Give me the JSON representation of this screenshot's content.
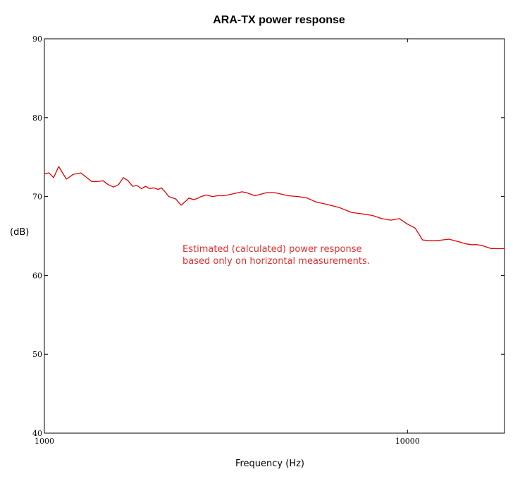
{
  "chart_data": {
    "type": "line",
    "title": "ARA-TX power response",
    "xlabel": "Frequency (Hz)",
    "ylabel": "(dB)",
    "x_scale": "log",
    "xlim": [
      1000,
      18500
    ],
    "ylim": [
      40,
      90
    ],
    "x_ticks": [
      1000,
      10000
    ],
    "x_tick_labels": [
      "1000",
      "10000"
    ],
    "y_ticks": [
      40,
      50,
      60,
      70,
      80,
      90
    ],
    "y_tick_labels": [
      "40",
      "50",
      "60",
      "70",
      "80",
      "90"
    ],
    "grid": false,
    "legend": "none",
    "series": [
      {
        "color": "#e00000",
        "x": [
          1000,
          1030,
          1060,
          1095,
          1150,
          1200,
          1260,
          1300,
          1350,
          1400,
          1450,
          1500,
          1550,
          1600,
          1650,
          1700,
          1750,
          1800,
          1850,
          1900,
          1950,
          2000,
          2060,
          2100,
          2150,
          2200,
          2300,
          2380,
          2450,
          2500,
          2580,
          2650,
          2700,
          2800,
          2900,
          3000,
          3100,
          3200,
          3350,
          3500,
          3600,
          3800,
          3950,
          4100,
          4300,
          4500,
          4700,
          5000,
          5300,
          5600,
          6000,
          6500,
          7000,
          7500,
          8000,
          8500,
          9000,
          9500,
          10000,
          10500,
          11000,
          11500,
          12000,
          12500,
          13000,
          13500,
          14000,
          14500,
          15000,
          15500,
          16000,
          17000,
          18000,
          18500
        ],
        "y": [
          72.9,
          73.0,
          72.4,
          73.8,
          72.2,
          72.8,
          73.0,
          72.5,
          71.9,
          71.9,
          72.0,
          71.5,
          71.2,
          71.5,
          72.4,
          72.0,
          71.3,
          71.4,
          71.0,
          71.3,
          71.0,
          71.1,
          70.9,
          71.1,
          70.6,
          70.0,
          69.7,
          68.9,
          69.4,
          69.8,
          69.6,
          69.8,
          70.0,
          70.2,
          70.0,
          70.1,
          70.1,
          70.2,
          70.4,
          70.6,
          70.5,
          70.1,
          70.3,
          70.5,
          70.5,
          70.3,
          70.1,
          70.0,
          69.8,
          69.3,
          69.0,
          68.6,
          68.0,
          67.8,
          67.6,
          67.2,
          67.0,
          67.2,
          66.5,
          66.0,
          64.5,
          64.4,
          64.4,
          64.5,
          64.6,
          64.4,
          64.2,
          64.0,
          63.9,
          63.9,
          63.8,
          63.4,
          63.4,
          63.4
        ]
      }
    ],
    "annotation": {
      "lines": [
        "Estimated (calculated) power response",
        "based only on horizontal measurements."
      ],
      "color": "#e03030"
    }
  }
}
